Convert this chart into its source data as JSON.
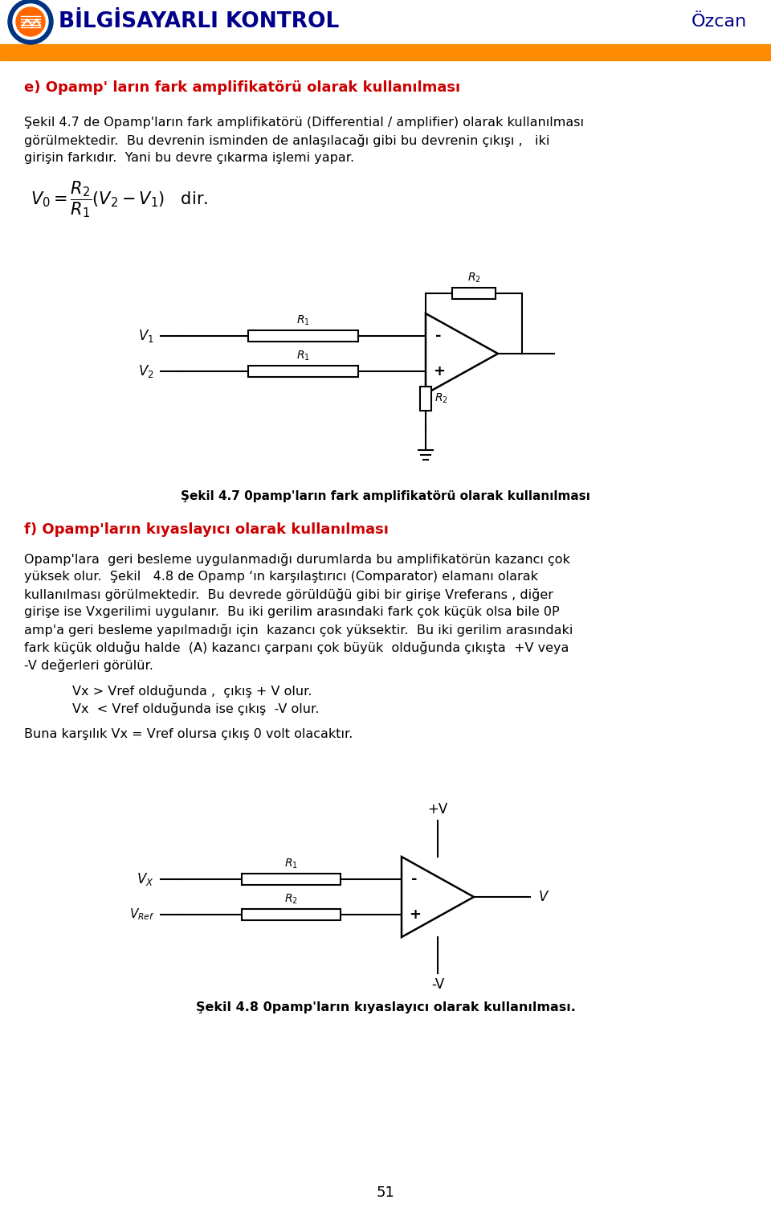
{
  "title_text": "BİLGİSAYARLI KONTROL",
  "right_title": "Özcan",
  "header_bar_color": "#FF8C00",
  "title_color": "#00008B",
  "page_number": "51",
  "section_e_title": "e) Opamp' ların fark amplifikatörü olarak kullanılması",
  "para1_line1": "Şekil 4.7 de Opamp'ların fark amplifikatörü (Differential / amplifier) olarak kullanılması",
  "para1_line2": "görülmektedir.  Bu devrenin isminden de anlaşılacağı gibi bu devrenin çıkışı ,   iki",
  "para1_line3": "girişin farkıdır.  Yani bu devre çıkarma işlemi yapar.",
  "fig47_caption": "Şekil 4.7 0pamp'ların fark amplifikatörü olarak kullanılması",
  "section_f_title": "f) Opamp'ların kıyaslayıcı olarak kullanılması",
  "para2_line1": "Opamp'lara  geri besleme uygulanmadığı durumlarda bu amplifikatörün kazancı çok",
  "para2_line2": "yüksek olur.  Şekil   4.8 de Opamp ‘ın karşılaştırıcı (Comparator) elamanı olarak",
  "para2_line3": "kullanılması görülmektedir.  Bu devrede görüldüğü gibi bir girişe Vreferans , diğer",
  "para2_line4": "girişe ise Vxgerilimi uygulanır.  Bu iki gerilim arasındaki fark çok küçük olsa bile 0P",
  "para2_line5": "amp'a geri besleme yapılmadığı için  kazancı çok yüksektir.  Bu iki gerilim arasındaki",
  "para2_line6": "fark küçük olduğu halde  (A) kazancı çarpanı çok büyük  olduğunda çıkışta  +V veya",
  "para2_line7": "-V değerleri görülür.",
  "vx_cond1": "Vx > Vref olduğunda ,  çıkış + V olur.",
  "vx_cond2": "Vx  < Vref olduğunda ise çıkış  -V olur.",
  "buna": "Buna karşılık Vx = Vref olursa çıkış 0 volt olacaktır.",
  "fig48_caption": "Şekil 4.8 0pamp'ların kıyaslayıcı olarak kullanılması.",
  "bg_color": "#FFFFFF",
  "text_color": "#000000",
  "red_color": "#CC0000"
}
